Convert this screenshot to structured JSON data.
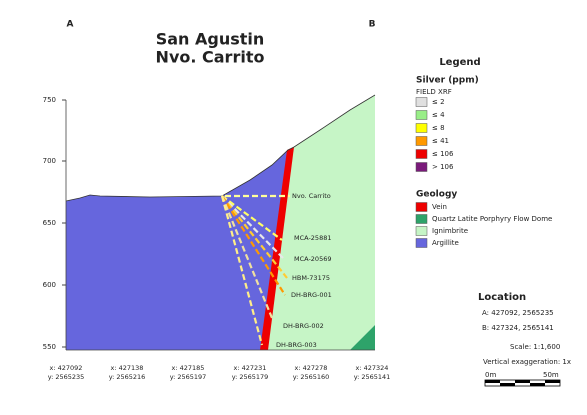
{
  "header": {
    "left_marker": "A",
    "right_marker": "B",
    "title_lines": [
      "San Agustin",
      "Nvo. Carrito"
    ]
  },
  "section": {
    "elevation_labels": [
      "750",
      "700",
      "650",
      "600",
      "550"
    ],
    "station_labels": [
      {
        "x": "x: 427092",
        "y": "y: 2565235"
      },
      {
        "x": "x: 427138",
        "y": "y: 2565216"
      },
      {
        "x": "x: 427185",
        "y": "y: 2565197"
      },
      {
        "x": "x: 427231",
        "y": "y: 2565179"
      },
      {
        "x": "x: 427278",
        "y": "y: 2565160"
      },
      {
        "x": "x: 427324",
        "y": "y: 2565141"
      }
    ],
    "surface_label": "Nvo. Carrito",
    "drill_holes": [
      "MCA-25881",
      "MCA-20569",
      "HBM-73175",
      "DH-BRG-001",
      "DH-BRG-002",
      "DH-BRG-003"
    ]
  },
  "legend": {
    "title": "Legend",
    "silver": {
      "title": "Silver (ppm)",
      "subtitle": "FIELD XRF",
      "items": [
        "≤ 2",
        "≤ 4",
        "≤ 8",
        "≤ 41",
        "≤ 106",
        "> 106"
      ]
    },
    "geology": {
      "title": "Geology",
      "items": [
        "Vein",
        "Quartz Latite Porphyry Flow Dome",
        "Ignimbrite",
        "Argillite"
      ]
    }
  },
  "location": {
    "title": "Location",
    "a": "A:  427092, 2565235",
    "b": "B:  427324, 2565141",
    "scale": "Scale: 1:1,600",
    "exaggeration": "Vertical exaggeration: 1x",
    "bar_start": "0m",
    "bar_end": "50m"
  }
}
